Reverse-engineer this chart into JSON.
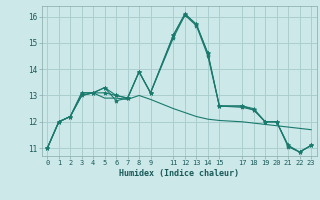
{
  "xlabel": "Humidex (Indice chaleur)",
  "bg_color": "#cce8e8",
  "grid_color": "#aacece",
  "line_color": "#1a7a6e",
  "xlim": [
    -0.5,
    23.5
  ],
  "ylim": [
    10.7,
    16.4
  ],
  "xticks": [
    0,
    1,
    2,
    3,
    4,
    5,
    6,
    7,
    8,
    9,
    11,
    12,
    13,
    14,
    15,
    17,
    18,
    19,
    20,
    21,
    22,
    23
  ],
  "yticks": [
    11,
    12,
    13,
    14,
    15,
    16
  ],
  "line1_x": [
    0,
    1,
    2,
    3,
    4,
    5,
    6,
    7,
    8,
    9,
    11,
    12,
    13,
    14,
    15,
    17,
    18,
    19,
    20,
    21,
    22,
    23
  ],
  "line1_y": [
    11.0,
    12.0,
    12.2,
    13.1,
    13.1,
    13.3,
    13.0,
    12.9,
    13.9,
    13.1,
    15.3,
    16.1,
    15.7,
    14.6,
    12.6,
    12.6,
    12.5,
    12.0,
    12.0,
    11.1,
    10.85,
    11.1
  ],
  "line2_x": [
    0,
    1,
    2,
    3,
    4,
    5,
    6,
    7,
    8,
    9,
    11,
    12,
    13,
    14,
    15,
    17,
    18,
    19,
    20,
    21,
    22,
    23
  ],
  "line2_y": [
    11.0,
    12.0,
    12.2,
    13.0,
    13.1,
    13.1,
    13.0,
    12.9,
    13.9,
    13.1,
    15.2,
    16.05,
    15.65,
    14.5,
    12.6,
    12.55,
    12.45,
    12.0,
    12.0,
    11.1,
    10.85,
    11.1
  ],
  "line3_x": [
    0,
    1,
    2,
    3,
    4,
    5,
    6,
    7,
    8,
    9,
    11,
    12,
    13,
    14,
    15,
    17,
    18,
    19,
    20,
    21,
    22,
    23
  ],
  "line3_y": [
    11.0,
    12.0,
    12.2,
    13.0,
    13.1,
    12.9,
    12.9,
    12.85,
    13.0,
    12.85,
    12.5,
    12.35,
    12.2,
    12.1,
    12.05,
    12.0,
    11.95,
    11.9,
    11.85,
    11.8,
    11.75,
    11.7
  ],
  "line4_x": [
    0,
    1,
    2,
    3,
    4,
    5,
    6,
    7,
    8,
    9,
    11,
    12,
    13,
    14,
    15,
    17,
    18,
    19,
    20,
    21,
    22,
    23
  ],
  "line4_y": [
    11.0,
    12.0,
    12.2,
    13.1,
    13.1,
    13.3,
    12.8,
    12.9,
    13.9,
    13.1,
    15.3,
    16.1,
    15.7,
    14.6,
    12.6,
    12.6,
    12.45,
    12.0,
    12.0,
    11.05,
    10.85,
    11.1
  ]
}
